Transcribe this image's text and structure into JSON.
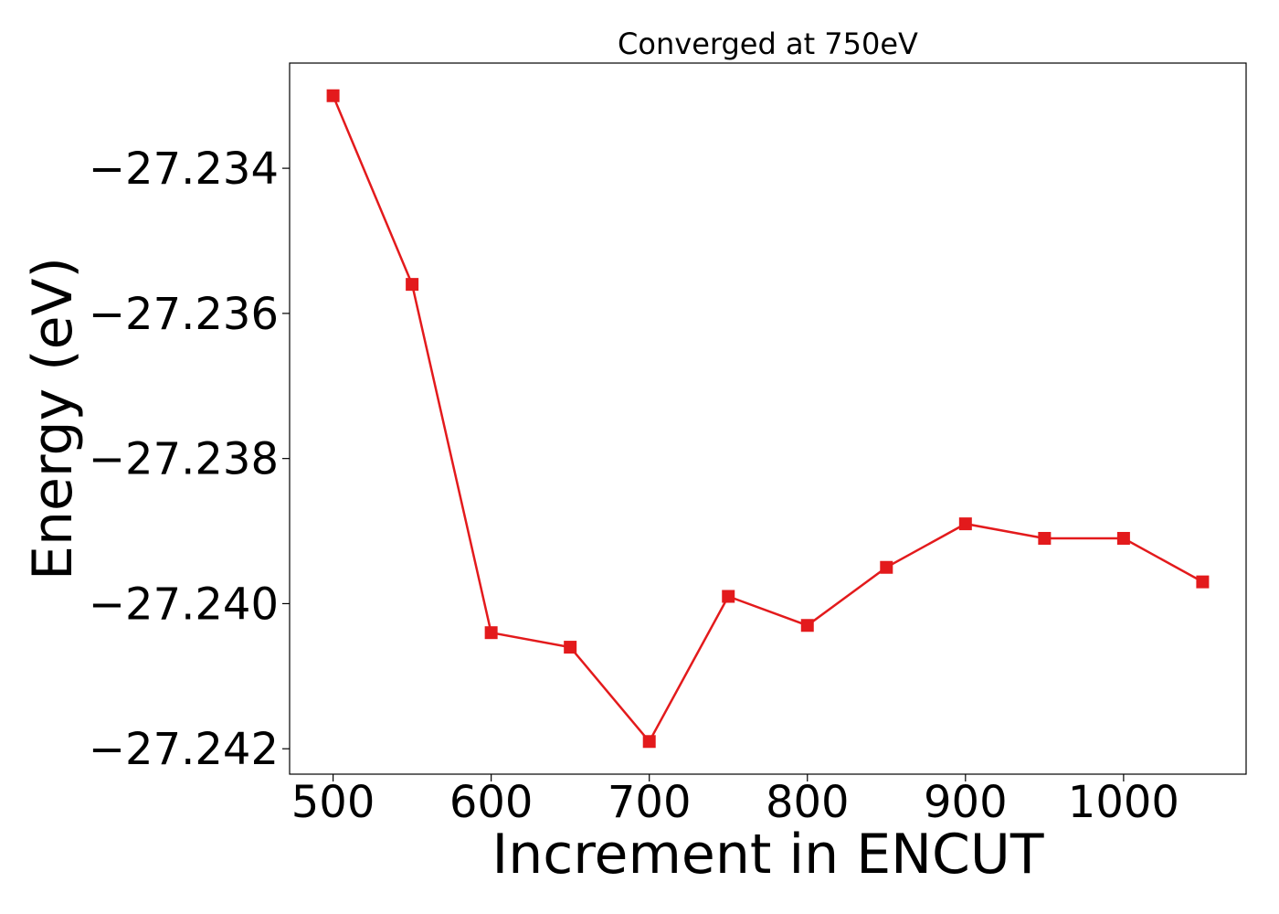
{
  "chart_data": {
    "type": "line",
    "title": "Converged at 750eV",
    "xlabel": "Increment in ENCUT",
    "ylabel": "Energy (eV)",
    "x": [
      500,
      550,
      600,
      650,
      700,
      750,
      800,
      850,
      900,
      950,
      1000,
      1050
    ],
    "series": [
      {
        "values": [
          -27.233,
          -27.2356,
          -27.2404,
          -27.2406,
          -27.2419,
          -27.2399,
          -27.2403,
          -27.2395,
          -27.2389,
          -27.2391,
          -27.2391,
          -27.2397
        ],
        "color": "#e31a1c",
        "marker": "square"
      }
    ],
    "xticks": [
      500,
      600,
      700,
      800,
      900,
      1000
    ],
    "yticks": [
      -27.234,
      -27.236,
      -27.238,
      -27.24,
      -27.242
    ],
    "ytick_labels": [
      "−27.234",
      "−27.236",
      "−27.238",
      "−27.240",
      "−27.242"
    ],
    "xlim": [
      472.5,
      1077.5
    ],
    "ylim": [
      -27.24235,
      -27.23255
    ],
    "grid": false,
    "legend": "none"
  }
}
